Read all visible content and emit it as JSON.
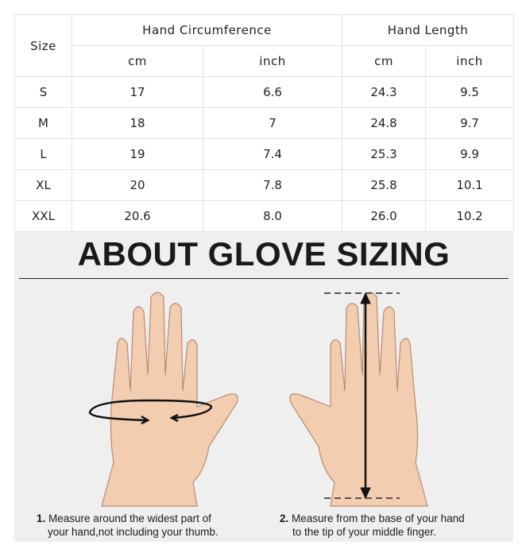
{
  "table": {
    "size_header": "Size",
    "groups": [
      "Hand Circumference",
      "Hand Length"
    ],
    "units": [
      "cm",
      "inch",
      "cm",
      "inch"
    ],
    "rows": [
      [
        "S",
        "17",
        "6.6",
        "24.3",
        "9.5"
      ],
      [
        "M",
        "18",
        "7",
        "24.8",
        "9.7"
      ],
      [
        "L",
        "19",
        "7.4",
        "25.3",
        "9.9"
      ],
      [
        "XL",
        "20",
        "7.8",
        "25.8",
        "10.1"
      ],
      [
        "XXL",
        "20.6",
        "8.0",
        "26.0",
        "10.2"
      ]
    ]
  },
  "guide": {
    "title": "ABOUT GLOVE SIZING",
    "steps": [
      {
        "num": "1.",
        "line1": "Measure around the widest part of",
        "line2": "your hand,not including your thumb."
      },
      {
        "num": "2.",
        "line1": "Measure from the base of your hand",
        "line2": "to the tip of your middle finger."
      }
    ]
  },
  "colors": {
    "skin": "#f3cdb0",
    "panel": "#efefef"
  }
}
